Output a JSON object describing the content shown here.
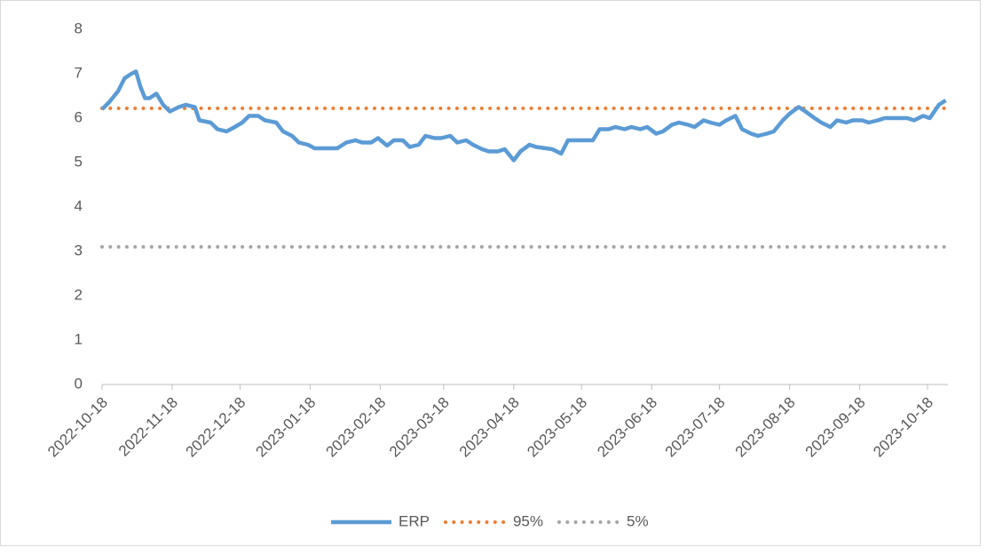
{
  "chart_data": {
    "type": "line",
    "x": [
      "2022-10-18",
      "2022-10-21",
      "2022-10-25",
      "2022-10-28",
      "2022-10-31",
      "2022-11-02",
      "2022-11-04",
      "2022-11-06",
      "2022-11-08",
      "2022-11-11",
      "2022-11-14",
      "2022-11-17",
      "2022-11-21",
      "2022-11-24",
      "2022-11-28",
      "2022-11-30",
      "2022-12-05",
      "2022-12-08",
      "2022-12-12",
      "2022-12-15",
      "2022-12-19",
      "2022-12-22",
      "2022-12-26",
      "2022-12-29",
      "2023-01-03",
      "2023-01-06",
      "2023-01-10",
      "2023-01-13",
      "2023-01-17",
      "2023-01-20",
      "2023-01-30",
      "2023-02-03",
      "2023-02-07",
      "2023-02-10",
      "2023-02-14",
      "2023-02-17",
      "2023-02-21",
      "2023-02-24",
      "2023-02-28",
      "2023-03-03",
      "2023-03-07",
      "2023-03-10",
      "2023-03-14",
      "2023-03-17",
      "2023-03-21",
      "2023-03-24",
      "2023-03-28",
      "2023-03-31",
      "2023-04-04",
      "2023-04-07",
      "2023-04-11",
      "2023-04-14",
      "2023-04-18",
      "2023-04-21",
      "2023-04-25",
      "2023-04-28",
      "2023-05-05",
      "2023-05-09",
      "2023-05-12",
      "2023-05-16",
      "2023-05-19",
      "2023-05-23",
      "2023-05-26",
      "2023-05-30",
      "2023-06-02",
      "2023-06-06",
      "2023-06-09",
      "2023-06-13",
      "2023-06-16",
      "2023-06-20",
      "2023-06-23",
      "2023-06-27",
      "2023-06-30",
      "2023-07-04",
      "2023-07-07",
      "2023-07-11",
      "2023-07-14",
      "2023-07-18",
      "2023-07-21",
      "2023-07-25",
      "2023-07-28",
      "2023-08-01",
      "2023-08-04",
      "2023-08-08",
      "2023-08-11",
      "2023-08-15",
      "2023-08-18",
      "2023-08-22",
      "2023-08-25",
      "2023-08-29",
      "2023-09-01",
      "2023-09-05",
      "2023-09-08",
      "2023-09-12",
      "2023-09-15",
      "2023-09-19",
      "2023-09-22",
      "2023-09-26",
      "2023-09-29",
      "2023-10-09",
      "2023-10-12",
      "2023-10-16",
      "2023-10-19",
      "2023-10-23",
      "2023-10-26"
    ],
    "series": [
      {
        "name": "ERP",
        "color": "#5b9bd5",
        "values": [
          6.2,
          6.35,
          6.6,
          6.9,
          7.0,
          7.05,
          6.7,
          6.45,
          6.45,
          6.55,
          6.3,
          6.15,
          6.25,
          6.3,
          6.25,
          5.95,
          5.9,
          5.75,
          5.7,
          5.78,
          5.9,
          6.05,
          6.05,
          5.95,
          5.9,
          5.7,
          5.6,
          5.45,
          5.4,
          5.32,
          5.32,
          5.45,
          5.5,
          5.45,
          5.45,
          5.55,
          5.38,
          5.5,
          5.5,
          5.35,
          5.4,
          5.6,
          5.55,
          5.55,
          5.6,
          5.45,
          5.5,
          5.4,
          5.3,
          5.25,
          5.25,
          5.3,
          5.05,
          5.25,
          5.4,
          5.35,
          5.3,
          5.2,
          5.5,
          5.5,
          5.5,
          5.5,
          5.75,
          5.75,
          5.8,
          5.75,
          5.8,
          5.75,
          5.8,
          5.65,
          5.7,
          5.85,
          5.9,
          5.85,
          5.8,
          5.95,
          5.9,
          5.85,
          5.95,
          6.05,
          5.75,
          5.65,
          5.6,
          5.65,
          5.7,
          5.95,
          6.1,
          6.25,
          6.15,
          6.0,
          5.9,
          5.8,
          5.95,
          5.9,
          5.95,
          5.95,
          5.9,
          5.95,
          6.0,
          6.0,
          5.95,
          6.05,
          6.0,
          6.3,
          6.4
        ]
      }
    ],
    "reference_lines": [
      {
        "name": "95%",
        "color": "#ed7d31",
        "value": 6.22
      },
      {
        "name": "5%",
        "color": "#a5a5a5",
        "value": 3.1
      }
    ],
    "xlim": [
      "2022-10-18",
      "2023-10-27"
    ],
    "xticks": [
      "2022-10-18",
      "2022-11-18",
      "2022-12-18",
      "2023-01-18",
      "2023-02-18",
      "2023-03-18",
      "2023-04-18",
      "2023-05-18",
      "2023-06-18",
      "2023-07-18",
      "2023-08-18",
      "2023-09-18",
      "2023-10-18"
    ],
    "ylim": [
      0,
      8
    ],
    "yticks": [
      0,
      1,
      2,
      3,
      4,
      5,
      6,
      7,
      8
    ],
    "grid": false,
    "legend": "bottom"
  }
}
